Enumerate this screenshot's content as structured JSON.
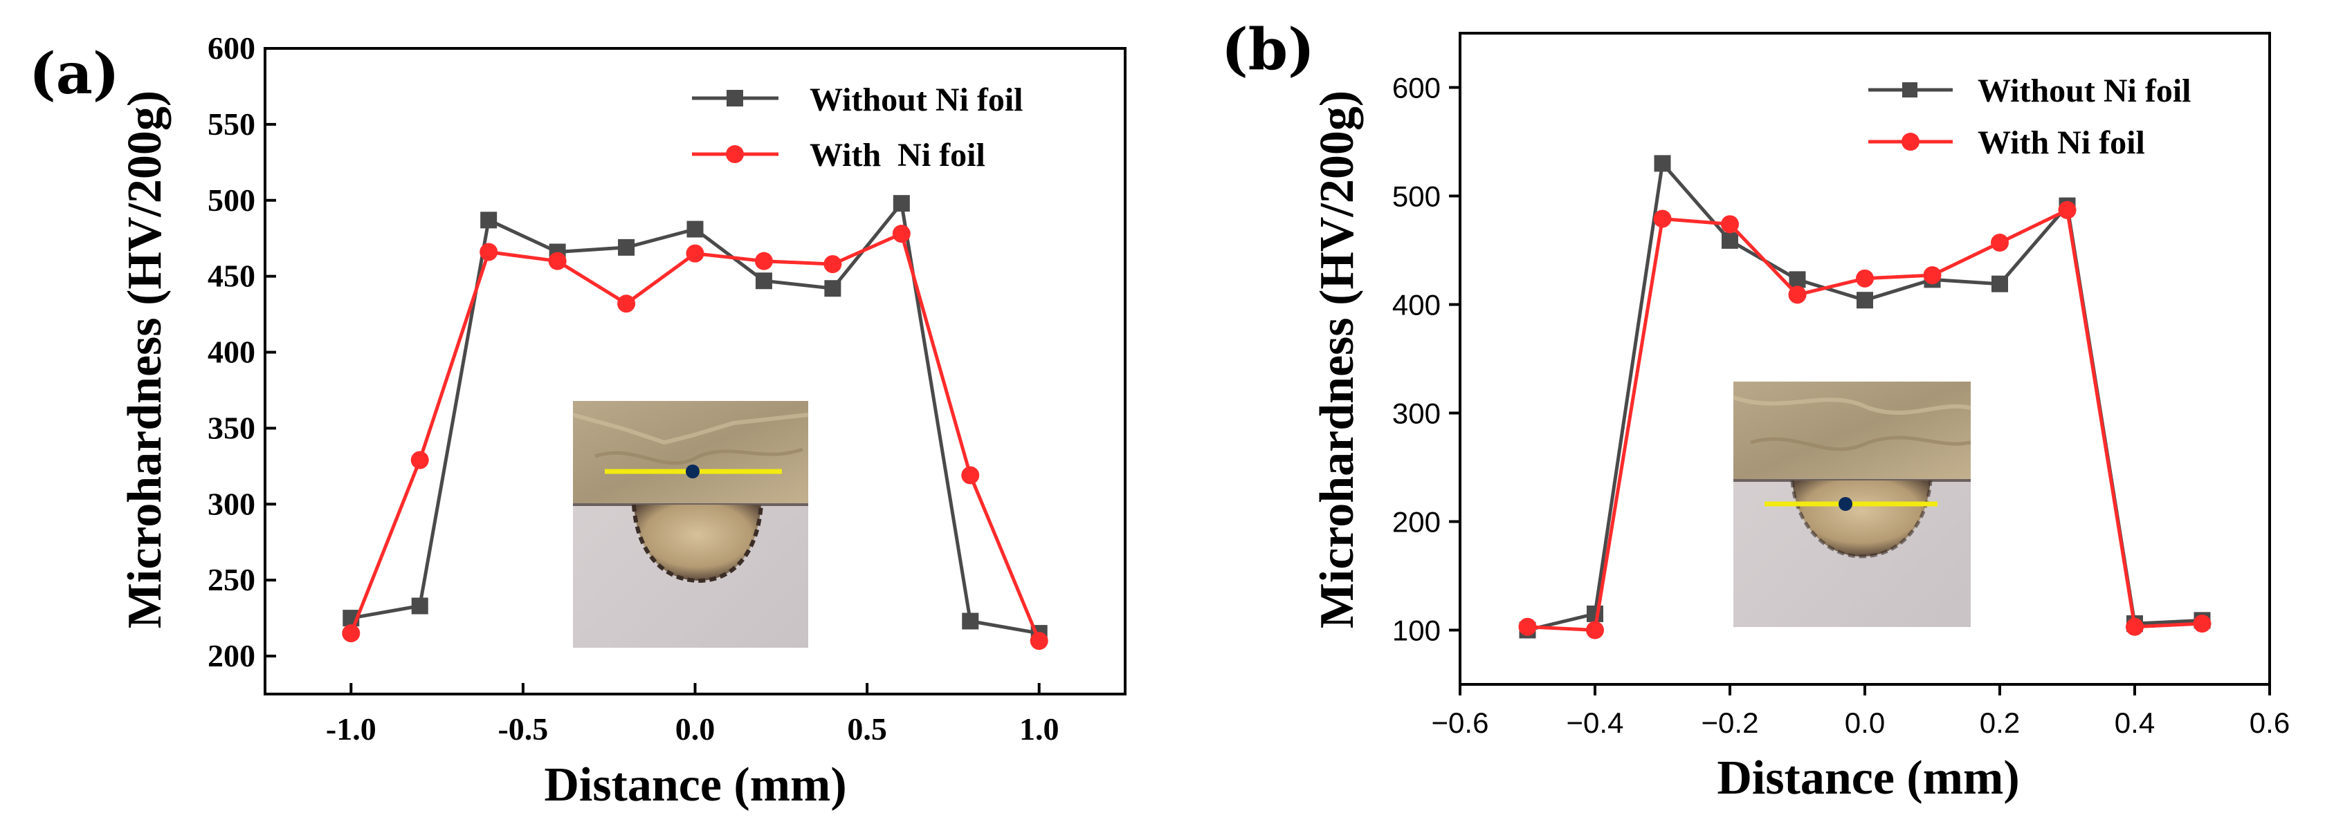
{
  "colors": {
    "without": "#4a4a4a",
    "with": "#ff2b2b",
    "axis": "#000000",
    "inset_line": "#f2ea10",
    "inset_dot": "#0a2a5a"
  },
  "chart_data": [
    {
      "panel_label": "(a)",
      "type": "line",
      "xlabel": "Distance (mm)",
      "ylabel": "Microhardness (HV/200g)",
      "xlim": [
        -1.25,
        1.25
      ],
      "ylim": [
        175,
        600
      ],
      "xticks": [
        -1.0,
        -0.5,
        0.0,
        0.5,
        1.0
      ],
      "xtick_labels": [
        "-1.0",
        "-0.5",
        "0.0",
        "0.5",
        "1.0"
      ],
      "yticks": [
        200,
        250,
        300,
        350,
        400,
        450,
        500,
        550,
        600
      ],
      "ytick_labels": [
        "200",
        "250",
        "300",
        "350",
        "400",
        "450",
        "500",
        "550",
        "600"
      ],
      "legend": "top-right",
      "grid": false,
      "series": [
        {
          "name": "Without Ni foil",
          "marker": "square",
          "x": [
            -1.0,
            -0.8,
            -0.6,
            -0.4,
            -0.2,
            0.0,
            0.2,
            0.4,
            0.6,
            0.8,
            1.0
          ],
          "y": [
            225,
            233,
            487,
            466,
            469,
            481,
            447,
            442,
            498,
            223,
            215
          ]
        },
        {
          "name": "With  Ni foil",
          "marker": "circle",
          "x": [
            -1.0,
            -0.8,
            -0.6,
            -0.4,
            -0.2,
            0.0,
            0.2,
            0.4,
            0.6,
            0.8,
            1.0
          ],
          "y": [
            215,
            329,
            466,
            460,
            432,
            465,
            460,
            458,
            478,
            319,
            210
          ]
        }
      ],
      "inset": {
        "description_marker": "weld cross-section micrograph with indent line",
        "line_position": "upper"
      }
    },
    {
      "panel_label": "(b)",
      "type": "line",
      "xlabel": "Distance (mm)",
      "ylabel": "Microhardness (HV/200g)",
      "xlim": [
        -0.6,
        0.6
      ],
      "ylim": [
        50,
        650
      ],
      "xticks": [
        -0.6,
        -0.4,
        -0.2,
        0.0,
        0.2,
        0.4,
        0.6
      ],
      "xtick_labels": [
        "−0.6",
        "−0.4",
        "−0.2",
        "0.0",
        "0.2",
        "0.4",
        "0.6"
      ],
      "yticks": [
        100,
        200,
        300,
        400,
        500,
        600
      ],
      "ytick_labels": [
        "100",
        "200",
        "300",
        "400",
        "500",
        "600"
      ],
      "legend": "top-right",
      "grid": false,
      "series": [
        {
          "name": "Without Ni foil",
          "marker": "square",
          "x": [
            -0.5,
            -0.4,
            -0.3,
            -0.2,
            -0.1,
            0.0,
            0.1,
            0.2,
            0.3,
            0.4,
            0.5
          ],
          "y": [
            100,
            115,
            530,
            459,
            423,
            404,
            423,
            419,
            491,
            106,
            109
          ]
        },
        {
          "name": "With Ni foil",
          "marker": "circle",
          "x": [
            -0.5,
            -0.4,
            -0.3,
            -0.2,
            -0.1,
            0.0,
            0.1,
            0.2,
            0.3,
            0.4,
            0.5
          ],
          "y": [
            103,
            100,
            479,
            474,
            409,
            424,
            427,
            457,
            487,
            103,
            106
          ]
        }
      ],
      "inset": {
        "description_marker": "weld cross-section micrograph with indent line",
        "line_position": "lower"
      }
    }
  ]
}
